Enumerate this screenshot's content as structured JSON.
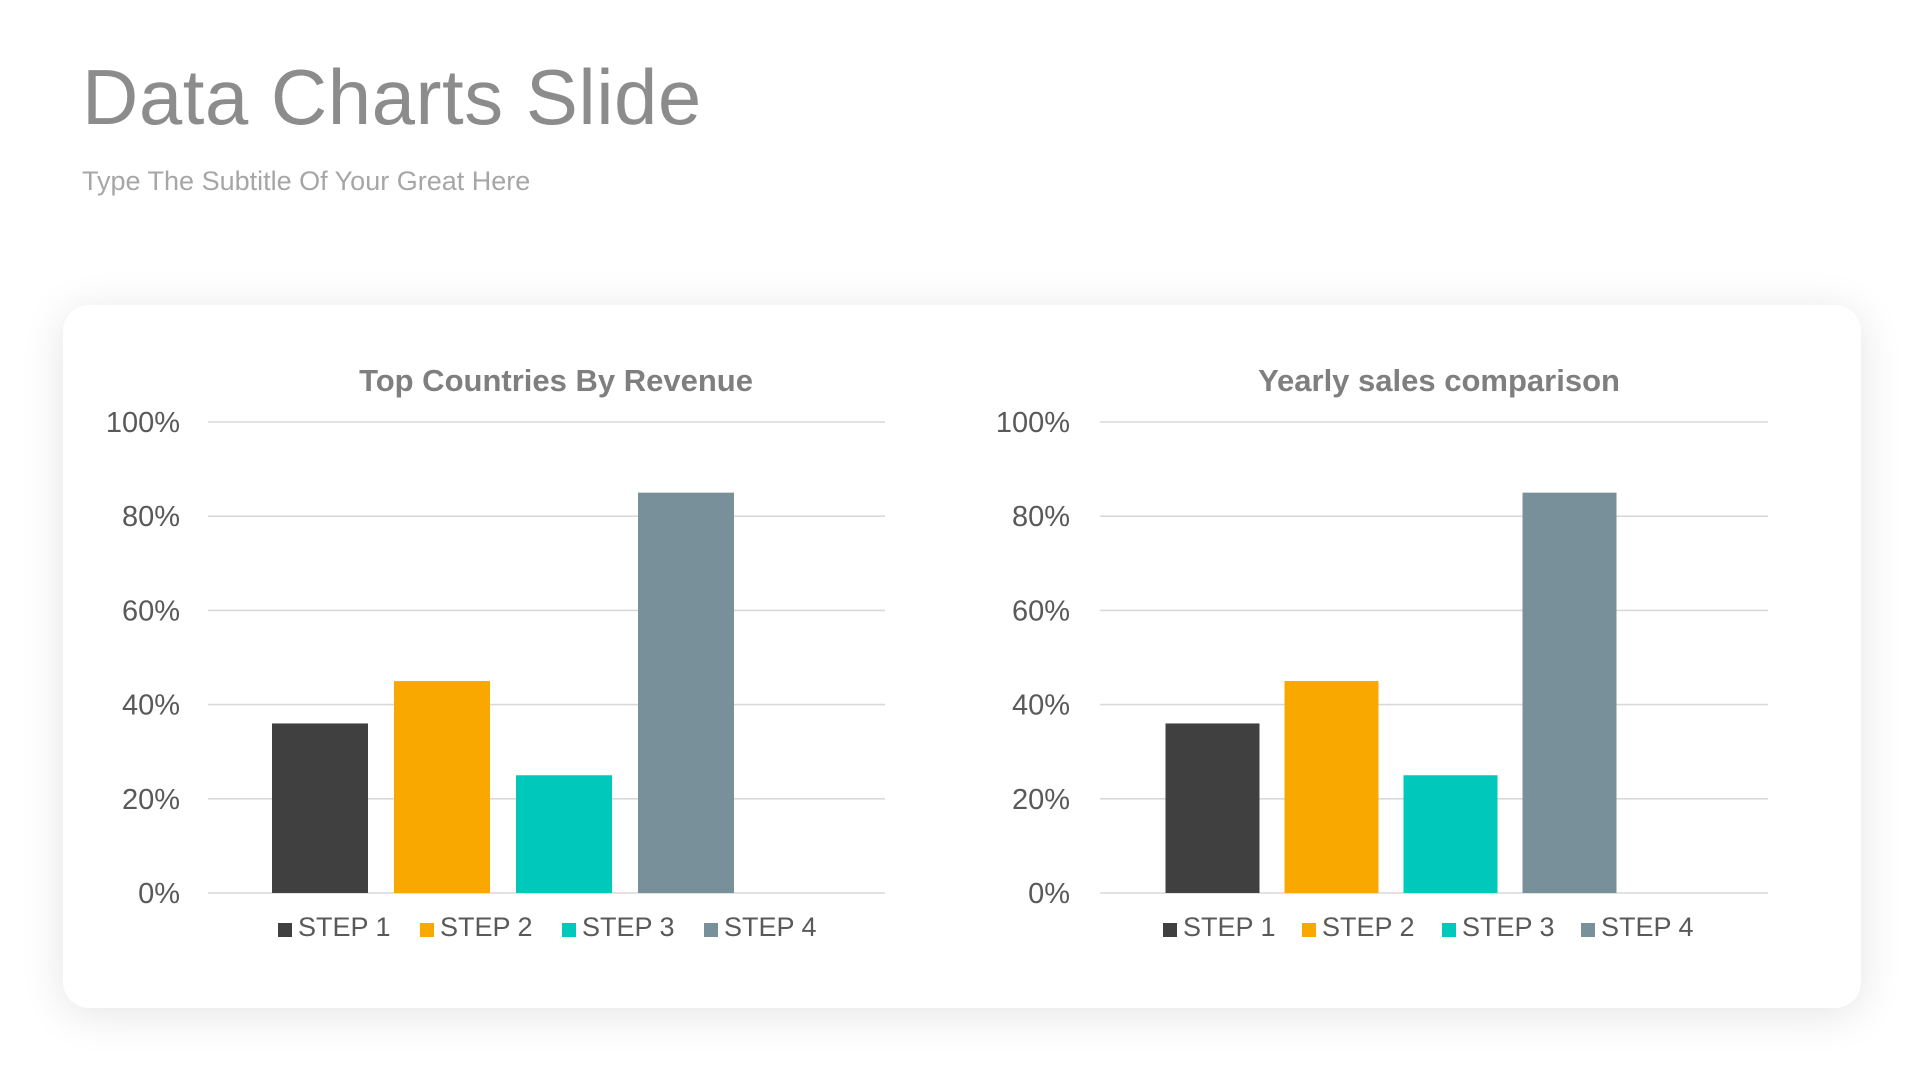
{
  "slide": {
    "title": "Data Charts Slide",
    "subtitle": "Type The Subtitle Of Your Great Here"
  },
  "colors": {
    "title": "#8c8c8c",
    "subtitle": "#a6a6a6",
    "gridline": "#d9d9d9",
    "axis_text": "#595959"
  },
  "chart_data": [
    {
      "type": "bar",
      "title": "Top Countries By Revenue",
      "categories": [
        "STEP 1",
        "STEP 2",
        "STEP 3",
        "STEP 4"
      ],
      "values": [
        36,
        45,
        25,
        85
      ],
      "colors": [
        "#404041",
        "#f9a800",
        "#00c8bb",
        "#78909a"
      ],
      "ylim": [
        0,
        100
      ],
      "yticks": [
        "0%",
        "20%",
        "40%",
        "60%",
        "80%",
        "100%"
      ],
      "grid": true,
      "legend": "bottom"
    },
    {
      "type": "bar",
      "title": "Yearly sales comparison",
      "categories": [
        "STEP 1",
        "STEP 2",
        "STEP 3",
        "STEP 4"
      ],
      "values": [
        36,
        45,
        25,
        85
      ],
      "colors": [
        "#404041",
        "#f9a800",
        "#00c8bb",
        "#78909a"
      ],
      "ylim": [
        0,
        100
      ],
      "yticks": [
        "0%",
        "20%",
        "40%",
        "60%",
        "80%",
        "100%"
      ],
      "grid": true,
      "legend": "bottom"
    }
  ]
}
